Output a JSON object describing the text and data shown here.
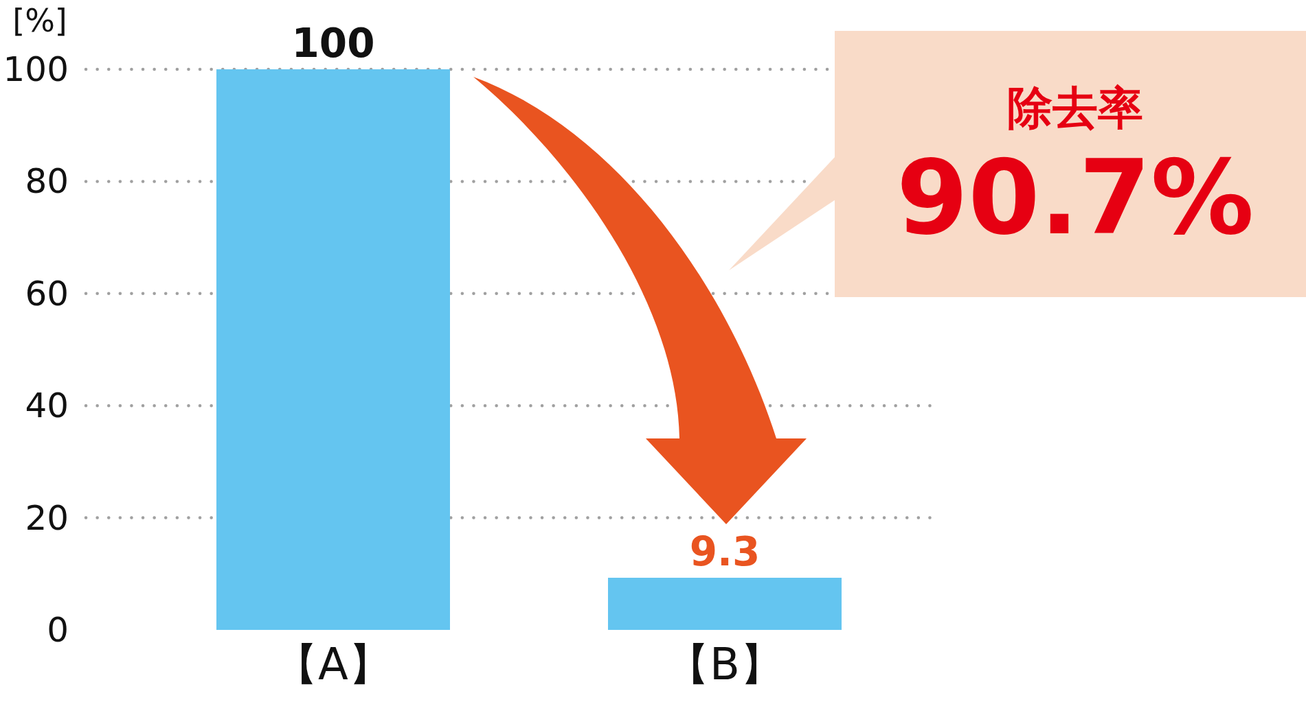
{
  "chart_data": {
    "type": "bar",
    "ylabel": "[%]",
    "categories": [
      "【A】",
      "【B】"
    ],
    "values": [
      100,
      9.3
    ],
    "color": "#64c5f0",
    "ylim": [
      0,
      100
    ],
    "yticks": [
      0,
      20,
      40,
      60,
      80,
      100
    ],
    "grid": "y",
    "data_labels": true,
    "annotations": [
      "除去率",
      "90.7%"
    ]
  }
}
